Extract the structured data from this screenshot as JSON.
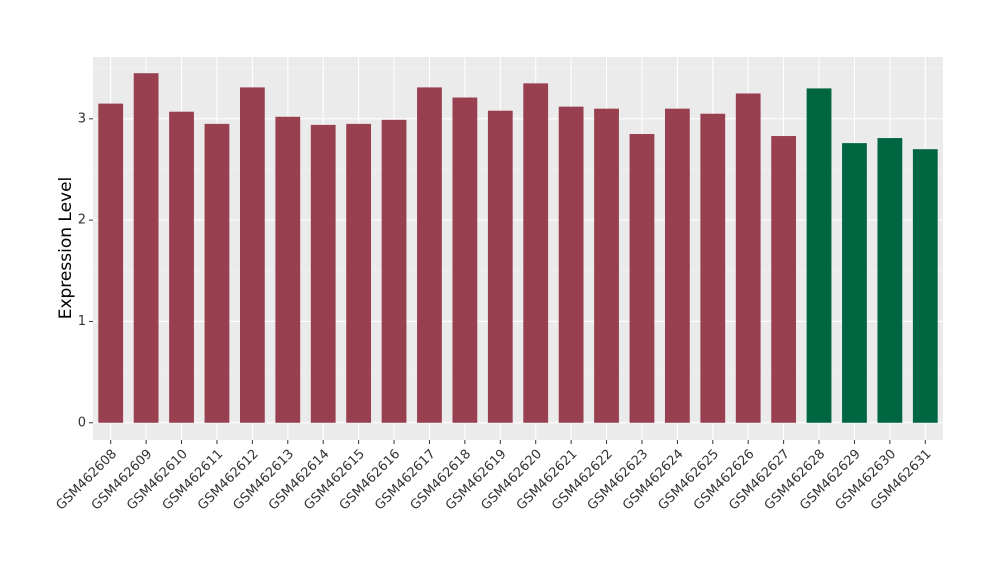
{
  "chart_data": {
    "type": "bar",
    "y_label": "Expression Level",
    "categories": [
      "GSM462608",
      "GSM462609",
      "GSM462610",
      "GSM462611",
      "GSM462612",
      "GSM462613",
      "GSM462614",
      "GSM462615",
      "GSM462616",
      "GSM462617",
      "GSM462618",
      "GSM462619",
      "GSM462620",
      "GSM462621",
      "GSM462622",
      "GSM462623",
      "GSM462624",
      "GSM462625",
      "GSM462626",
      "GSM462627",
      "GSM462628",
      "GSM462629",
      "GSM462630",
      "GSM462631"
    ],
    "values": [
      3.15,
      3.45,
      3.07,
      2.95,
      3.31,
      3.02,
      2.94,
      2.95,
      2.99,
      3.31,
      3.21,
      3.08,
      3.35,
      3.12,
      3.1,
      2.85,
      3.1,
      3.05,
      3.25,
      2.83,
      3.3,
      2.76,
      2.81,
      2.7
    ],
    "colors": [
      "#994050",
      "#994050",
      "#994050",
      "#994050",
      "#994050",
      "#994050",
      "#994050",
      "#994050",
      "#994050",
      "#994050",
      "#994050",
      "#994050",
      "#994050",
      "#994050",
      "#994050",
      "#994050",
      "#994050",
      "#994050",
      "#994050",
      "#994050",
      "#006641",
      "#006641",
      "#006641",
      "#006641"
    ],
    "ylim": [
      -0.17,
      3.61
    ],
    "yticks": [
      0,
      1,
      2,
      3
    ],
    "minor_yticks": [
      0.5,
      1.5,
      2.5,
      3.5
    ],
    "grid": true
  }
}
